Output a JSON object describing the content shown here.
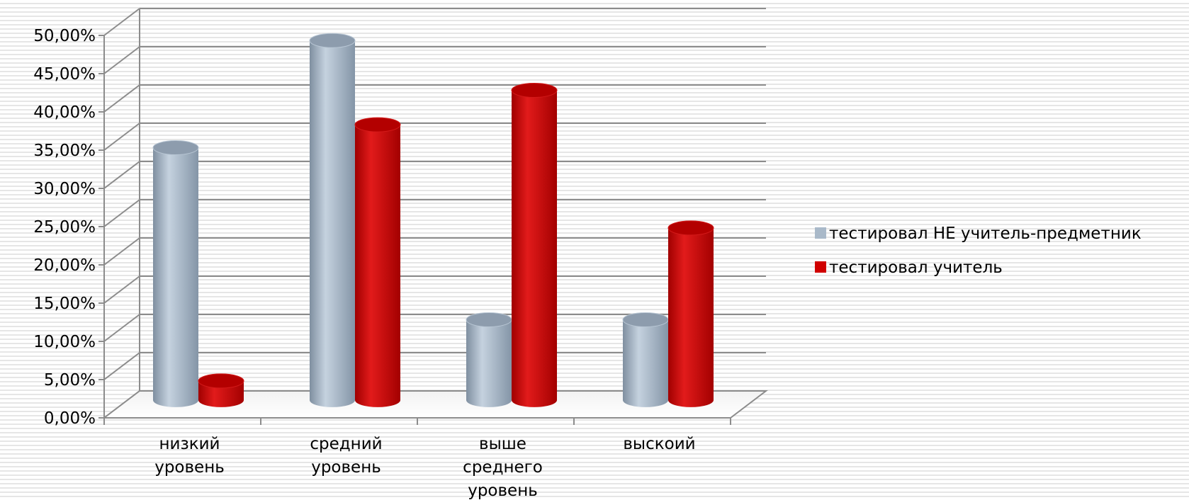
{
  "chart_data": {
    "type": "bar",
    "variant": "3d-cylinder",
    "title": "",
    "xlabel": "",
    "ylabel": "",
    "categories": [
      [
        "низкий",
        "уровень"
      ],
      [
        "средний",
        "уровень"
      ],
      [
        "выше",
        "среднего",
        "уровень"
      ],
      [
        "выскоий"
      ]
    ],
    "series": [
      {
        "name": "тестировал НЕ учитель-предметник",
        "color": "#a9b9c9",
        "values": [
          0.33,
          0.47,
          0.105,
          0.105
        ]
      },
      {
        "name": "тестировал учитель",
        "color": "#d00000",
        "values": [
          0.025,
          0.36,
          0.405,
          0.225
        ]
      }
    ],
    "yticks": [
      "0,00%",
      "5,00%",
      "10,00%",
      "15,00%",
      "20,00%",
      "25,00%",
      "30,00%",
      "35,00%",
      "40,00%",
      "45,00%",
      "50,00%"
    ],
    "ylim": [
      0,
      0.5
    ],
    "grid": true,
    "legend": "right"
  }
}
